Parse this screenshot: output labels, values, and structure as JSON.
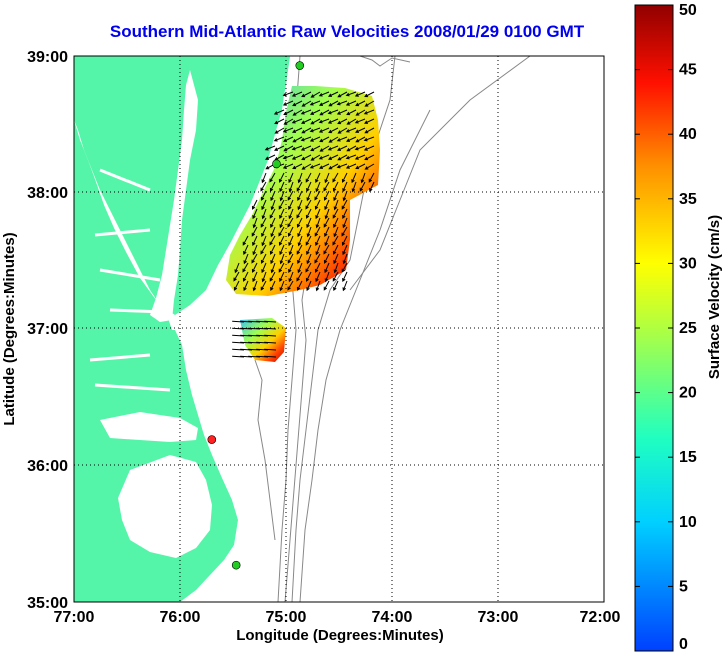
{
  "title": "Southern Mid-Atlantic Raw Velocities 2008/01/29 0100 GMT",
  "map": {
    "xlabel": "Longitude (Degrees:Minutes)",
    "ylabel": "Latitude (Degrees:Minutes)",
    "x_ticks": [
      "77:00",
      "76:00",
      "75:00",
      "74:00",
      "73:00",
      "72:00"
    ],
    "y_ticks": [
      "39:00",
      "38:00",
      "37:00",
      "36:00",
      "35:00"
    ],
    "lon_range": [
      -77,
      -72
    ],
    "lat_range": [
      35,
      39
    ],
    "grid": "dotted",
    "land_color": "#55f5a9",
    "water_color": "#ffffff",
    "bathymetry_color": "#888888"
  },
  "colorbar": {
    "label": "Surface Velocity (cm/s)",
    "ticks": [
      "0",
      "5",
      "10",
      "15",
      "20",
      "25",
      "30",
      "35",
      "40",
      "45",
      "50"
    ],
    "range": [
      0,
      50
    ],
    "colormap": "jet"
  },
  "stations": [
    {
      "lon": -74.87,
      "lat": 38.93,
      "color": "#22cc22"
    },
    {
      "lon": -75.09,
      "lat": 38.21,
      "color": "#22cc22"
    },
    {
      "lon": -75.7,
      "lat": 36.19,
      "color": "#ff2222"
    },
    {
      "lon": -75.47,
      "lat": 35.27,
      "color": "#22cc22"
    }
  ]
}
